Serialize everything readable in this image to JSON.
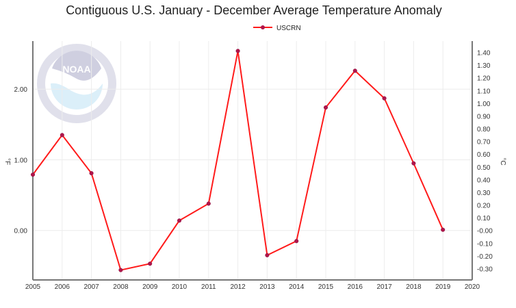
{
  "chart_data": {
    "type": "line",
    "title": "Contiguous U.S. January - December Average Temperature Anomaly",
    "legend": {
      "entries": [
        "USCRN"
      ],
      "placement": "top-center"
    },
    "xlabel": "",
    "ylabel": "°F",
    "y2label": "°C",
    "x": [
      2005,
      2006,
      2007,
      2008,
      2009,
      2010,
      2011,
      2012,
      2013,
      2014,
      2015,
      2016,
      2017,
      2018,
      2019
    ],
    "series": [
      {
        "name": "USCRN",
        "color": "#ff1a1a",
        "marker_color": "#b0154a",
        "values": [
          0.79,
          1.35,
          0.81,
          -0.56,
          -0.47,
          0.14,
          0.38,
          2.54,
          -0.35,
          -0.15,
          1.74,
          2.26,
          1.87,
          0.95,
          0.01
        ]
      }
    ],
    "xlim": [
      2005,
      2020
    ],
    "xticks": [
      "2005",
      "2006",
      "2007",
      "2008",
      "2009",
      "2010",
      "2011",
      "2012",
      "2013",
      "2014",
      "2015",
      "2016",
      "2017",
      "2018",
      "2019",
      "2020"
    ],
    "ylim": [
      -0.7,
      2.68
    ],
    "yticks": [
      "0.00",
      "1.00",
      "2.00"
    ],
    "y2ticks": [
      "-0.30",
      "-0.20",
      "-0.10",
      "-0.00",
      "0.10",
      "0.20",
      "0.30",
      "0.40",
      "0.50",
      "0.60",
      "0.70",
      "0.80",
      "0.90",
      "1.00",
      "1.10",
      "1.20",
      "1.30",
      "1.40"
    ],
    "grid": true,
    "watermark": "NOAA - National Oceanic and Atmospheric Administration - U.S. Department of Commerce"
  }
}
